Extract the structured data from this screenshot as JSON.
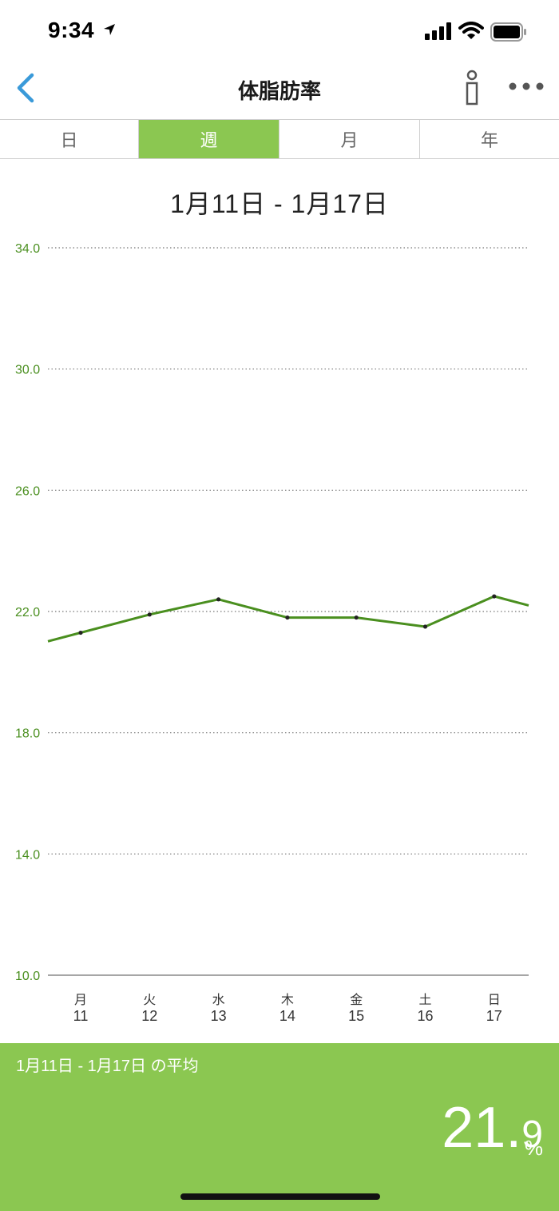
{
  "status_bar": {
    "time": "9:34"
  },
  "nav": {
    "title": "体脂肪率"
  },
  "tabs": [
    {
      "label": "日",
      "active": false
    },
    {
      "label": "週",
      "active": true
    },
    {
      "label": "月",
      "active": false
    },
    {
      "label": "年",
      "active": false
    }
  ],
  "range_title": "1月11日 - 1月17日",
  "colors": {
    "accent": "#8bc751",
    "line": "#4a8f1f",
    "axis_label": "#4a8f1f"
  },
  "chart_data": {
    "type": "line",
    "y_ticks": [
      "34.0",
      "30.0",
      "26.0",
      "22.0",
      "18.0",
      "14.0",
      "10.0"
    ],
    "ylim": [
      10,
      34
    ],
    "categories": [
      {
        "day": "月",
        "date": "11"
      },
      {
        "day": "火",
        "date": "12"
      },
      {
        "day": "水",
        "date": "13"
      },
      {
        "day": "木",
        "date": "14"
      },
      {
        "day": "金",
        "date": "15"
      },
      {
        "day": "土",
        "date": "16"
      },
      {
        "day": "日",
        "date": "17"
      }
    ],
    "series": [
      {
        "values": [
          21.3,
          21.9,
          22.4,
          21.8,
          21.8,
          21.5,
          22.5
        ]
      }
    ],
    "grid": true
  },
  "footer": {
    "label": "1月11日  - 1月17日 の平均",
    "avg_int": "21.",
    "avg_dec": "9",
    "unit": "%"
  }
}
